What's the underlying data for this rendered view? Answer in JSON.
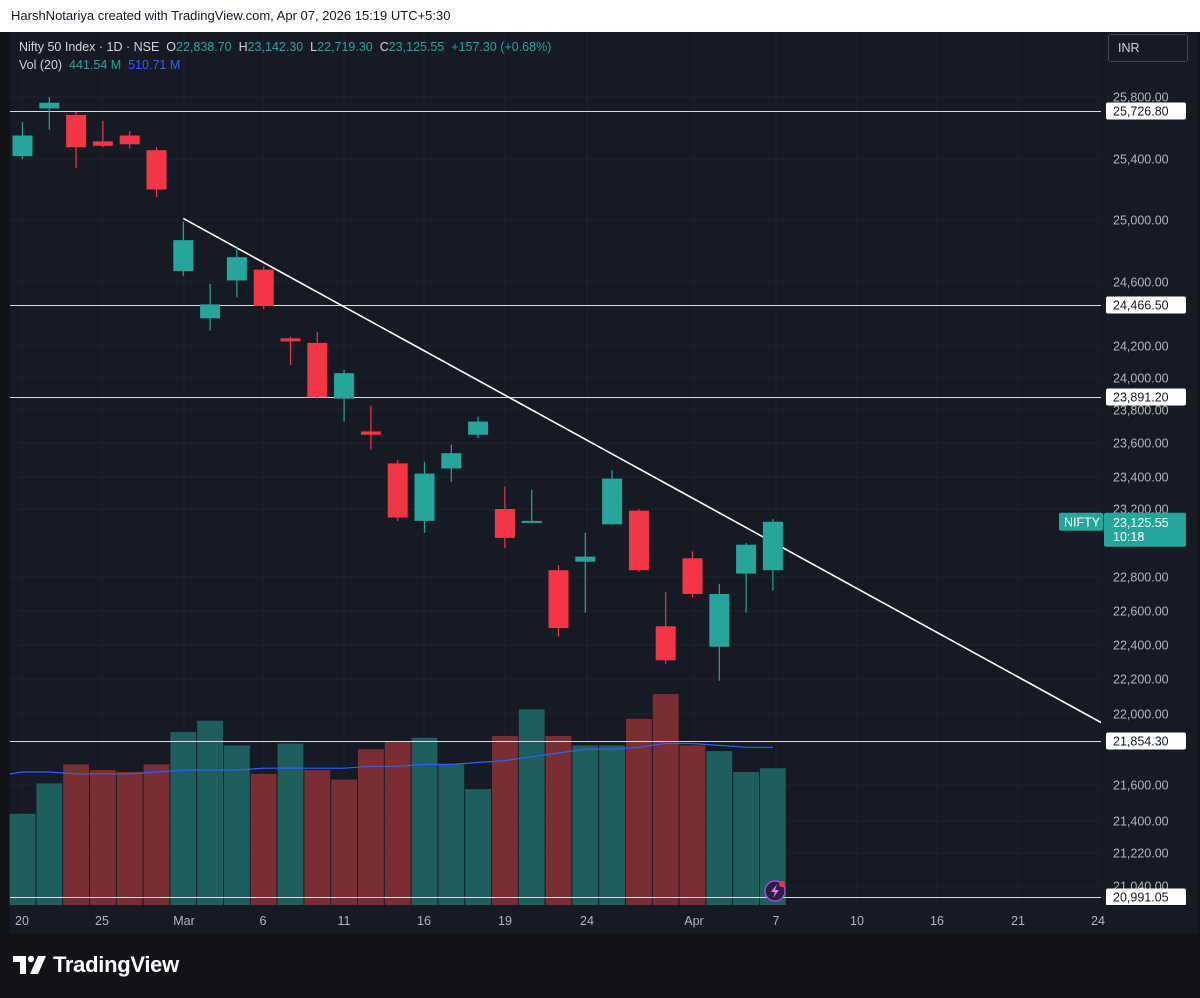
{
  "header": {
    "attribution": "HarshNotariya created with TradingView.com, Apr 07, 2026 15:19 UTC+5:30"
  },
  "legend": {
    "symbol": "Nifty 50 Index · 1D · NSE",
    "o_label": "O",
    "o_value": "22,838.70",
    "h_label": "H",
    "h_value": "23,142.30",
    "l_label": "L",
    "l_value": "22,719.30",
    "c_label": "C",
    "c_value": "23,125.55",
    "change": "+157.30 (+0.68%)",
    "vol_label": "Vol (20)",
    "vol_value": "441.54 M",
    "vol_ma_value": "510.71 M"
  },
  "currency": "INR",
  "price_tag": {
    "ticker": "NIFTY",
    "price": "23,125.55",
    "countdown": "10:18"
  },
  "brand": "TradingView",
  "colors": {
    "up": "#26a69a",
    "down": "#f23645",
    "volume_ma": "#2962ff",
    "background": "#161a25"
  },
  "chart_data": {
    "type": "candlestick",
    "y_axis": {
      "ticks": [
        "25,800.00",
        "25,400.00",
        "25,000.00",
        "24,600.00",
        "24,200.00",
        "24,000.00",
        "23,800.00",
        "23,600.00",
        "23,400.00",
        "23,200.00",
        "22,800.00",
        "22,600.00",
        "22,400.00",
        "22,200.00",
        "22,000.00",
        "21,600.00",
        "21,400.00",
        "21,220.00",
        "21,040.00"
      ]
    },
    "x_axis": {
      "ticks": [
        "20",
        "25",
        "Mar",
        "6",
        "11",
        "16",
        "19",
        "24",
        "Apr",
        "7",
        "10",
        "16",
        "21",
        "24"
      ]
    },
    "horizontal_levels": [
      "25,726.80",
      "24,466.50",
      "23,891.20",
      "21,854.30",
      "20,991.05"
    ],
    "trendline": {
      "from": {
        "bar": 6,
        "price": 25010
      },
      "to": {
        "bar": 41.5,
        "price": 21854.3
      }
    },
    "candles": [
      {
        "o": 25420,
        "h": 25650,
        "l": 25400,
        "c": 25560
      },
      {
        "o": 25740,
        "h": 25800,
        "l": 25600,
        "c": 25770
      },
      {
        "o": 25700,
        "h": 25720,
        "l": 25340,
        "c": 25480
      },
      {
        "o": 25520,
        "h": 25660,
        "l": 25480,
        "c": 25490
      },
      {
        "o": 25560,
        "h": 25590,
        "l": 25470,
        "c": 25500
      },
      {
        "o": 25460,
        "h": 25480,
        "l": 25150,
        "c": 25200
      },
      {
        "o": 24670,
        "h": 24990,
        "l": 24640,
        "c": 24870
      },
      {
        "o": 24380,
        "h": 24590,
        "l": 24300,
        "c": 24470
      },
      {
        "o": 24610,
        "h": 24830,
        "l": 24510,
        "c": 24760
      },
      {
        "o": 24680,
        "h": 24700,
        "l": 24440,
        "c": 24460
      },
      {
        "o": 24250,
        "h": 24260,
        "l": 24080,
        "c": 24230
      },
      {
        "o": 24220,
        "h": 24290,
        "l": 23880,
        "c": 23890
      },
      {
        "o": 23880,
        "h": 24050,
        "l": 23730,
        "c": 24030
      },
      {
        "o": 23670,
        "h": 23830,
        "l": 23560,
        "c": 23650
      },
      {
        "o": 23480,
        "h": 23500,
        "l": 23130,
        "c": 23150
      },
      {
        "o": 23130,
        "h": 23490,
        "l": 23060,
        "c": 23420
      },
      {
        "o": 23450,
        "h": 23590,
        "l": 23370,
        "c": 23540
      },
      {
        "o": 23650,
        "h": 23760,
        "l": 23630,
        "c": 23730
      },
      {
        "o": 23200,
        "h": 23340,
        "l": 22970,
        "c": 23030
      },
      {
        "o": 23125,
        "h": 23320,
        "l": 23120,
        "c": 23130
      },
      {
        "o": 22840,
        "h": 22870,
        "l": 22450,
        "c": 22500
      },
      {
        "o": 22890,
        "h": 23060,
        "l": 22590,
        "c": 22920
      },
      {
        "o": 23110,
        "h": 23440,
        "l": 23110,
        "c": 23390
      },
      {
        "o": 23190,
        "h": 23200,
        "l": 22830,
        "c": 22840
      },
      {
        "o": 22510,
        "h": 22710,
        "l": 22290,
        "c": 22310
      },
      {
        "o": 22910,
        "h": 22950,
        "l": 22680,
        "c": 22700
      },
      {
        "o": 22390,
        "h": 22760,
        "l": 22190,
        "c": 22700
      },
      {
        "o": 22820,
        "h": 23000,
        "l": 22590,
        "c": 22990
      },
      {
        "o": 22840,
        "h": 23140,
        "l": 22720,
        "c": 23125
      }
    ],
    "volume": [
      {
        "v": 0.48,
        "dir": "up"
      },
      {
        "v": 0.64,
        "dir": "up"
      },
      {
        "v": 0.74,
        "dir": "down"
      },
      {
        "v": 0.71,
        "dir": "down"
      },
      {
        "v": 0.7,
        "dir": "down"
      },
      {
        "v": 0.74,
        "dir": "down"
      },
      {
        "v": 0.91,
        "dir": "up"
      },
      {
        "v": 0.97,
        "dir": "up"
      },
      {
        "v": 0.84,
        "dir": "up"
      },
      {
        "v": 0.69,
        "dir": "down"
      },
      {
        "v": 0.85,
        "dir": "up"
      },
      {
        "v": 0.71,
        "dir": "down"
      },
      {
        "v": 0.66,
        "dir": "down"
      },
      {
        "v": 0.82,
        "dir": "down"
      },
      {
        "v": 0.86,
        "dir": "down"
      },
      {
        "v": 0.88,
        "dir": "up"
      },
      {
        "v": 0.74,
        "dir": "up"
      },
      {
        "v": 0.61,
        "dir": "up"
      },
      {
        "v": 0.89,
        "dir": "down"
      },
      {
        "v": 1.03,
        "dir": "up"
      },
      {
        "v": 0.89,
        "dir": "down"
      },
      {
        "v": 0.84,
        "dir": "up"
      },
      {
        "v": 0.84,
        "dir": "up"
      },
      {
        "v": 0.98,
        "dir": "down"
      },
      {
        "v": 1.11,
        "dir": "down"
      },
      {
        "v": 0.84,
        "dir": "down"
      },
      {
        "v": 0.81,
        "dir": "up"
      },
      {
        "v": 0.7,
        "dir": "up"
      },
      {
        "v": 0.72,
        "dir": "up"
      }
    ],
    "volume_ma": [
      0.7,
      0.7,
      0.69,
      0.69,
      0.69,
      0.7,
      0.71,
      0.71,
      0.71,
      0.72,
      0.72,
      0.72,
      0.72,
      0.73,
      0.73,
      0.74,
      0.74,
      0.75,
      0.76,
      0.78,
      0.8,
      0.82,
      0.82,
      0.83,
      0.85,
      0.85,
      0.84,
      0.83,
      0.83
    ]
  }
}
